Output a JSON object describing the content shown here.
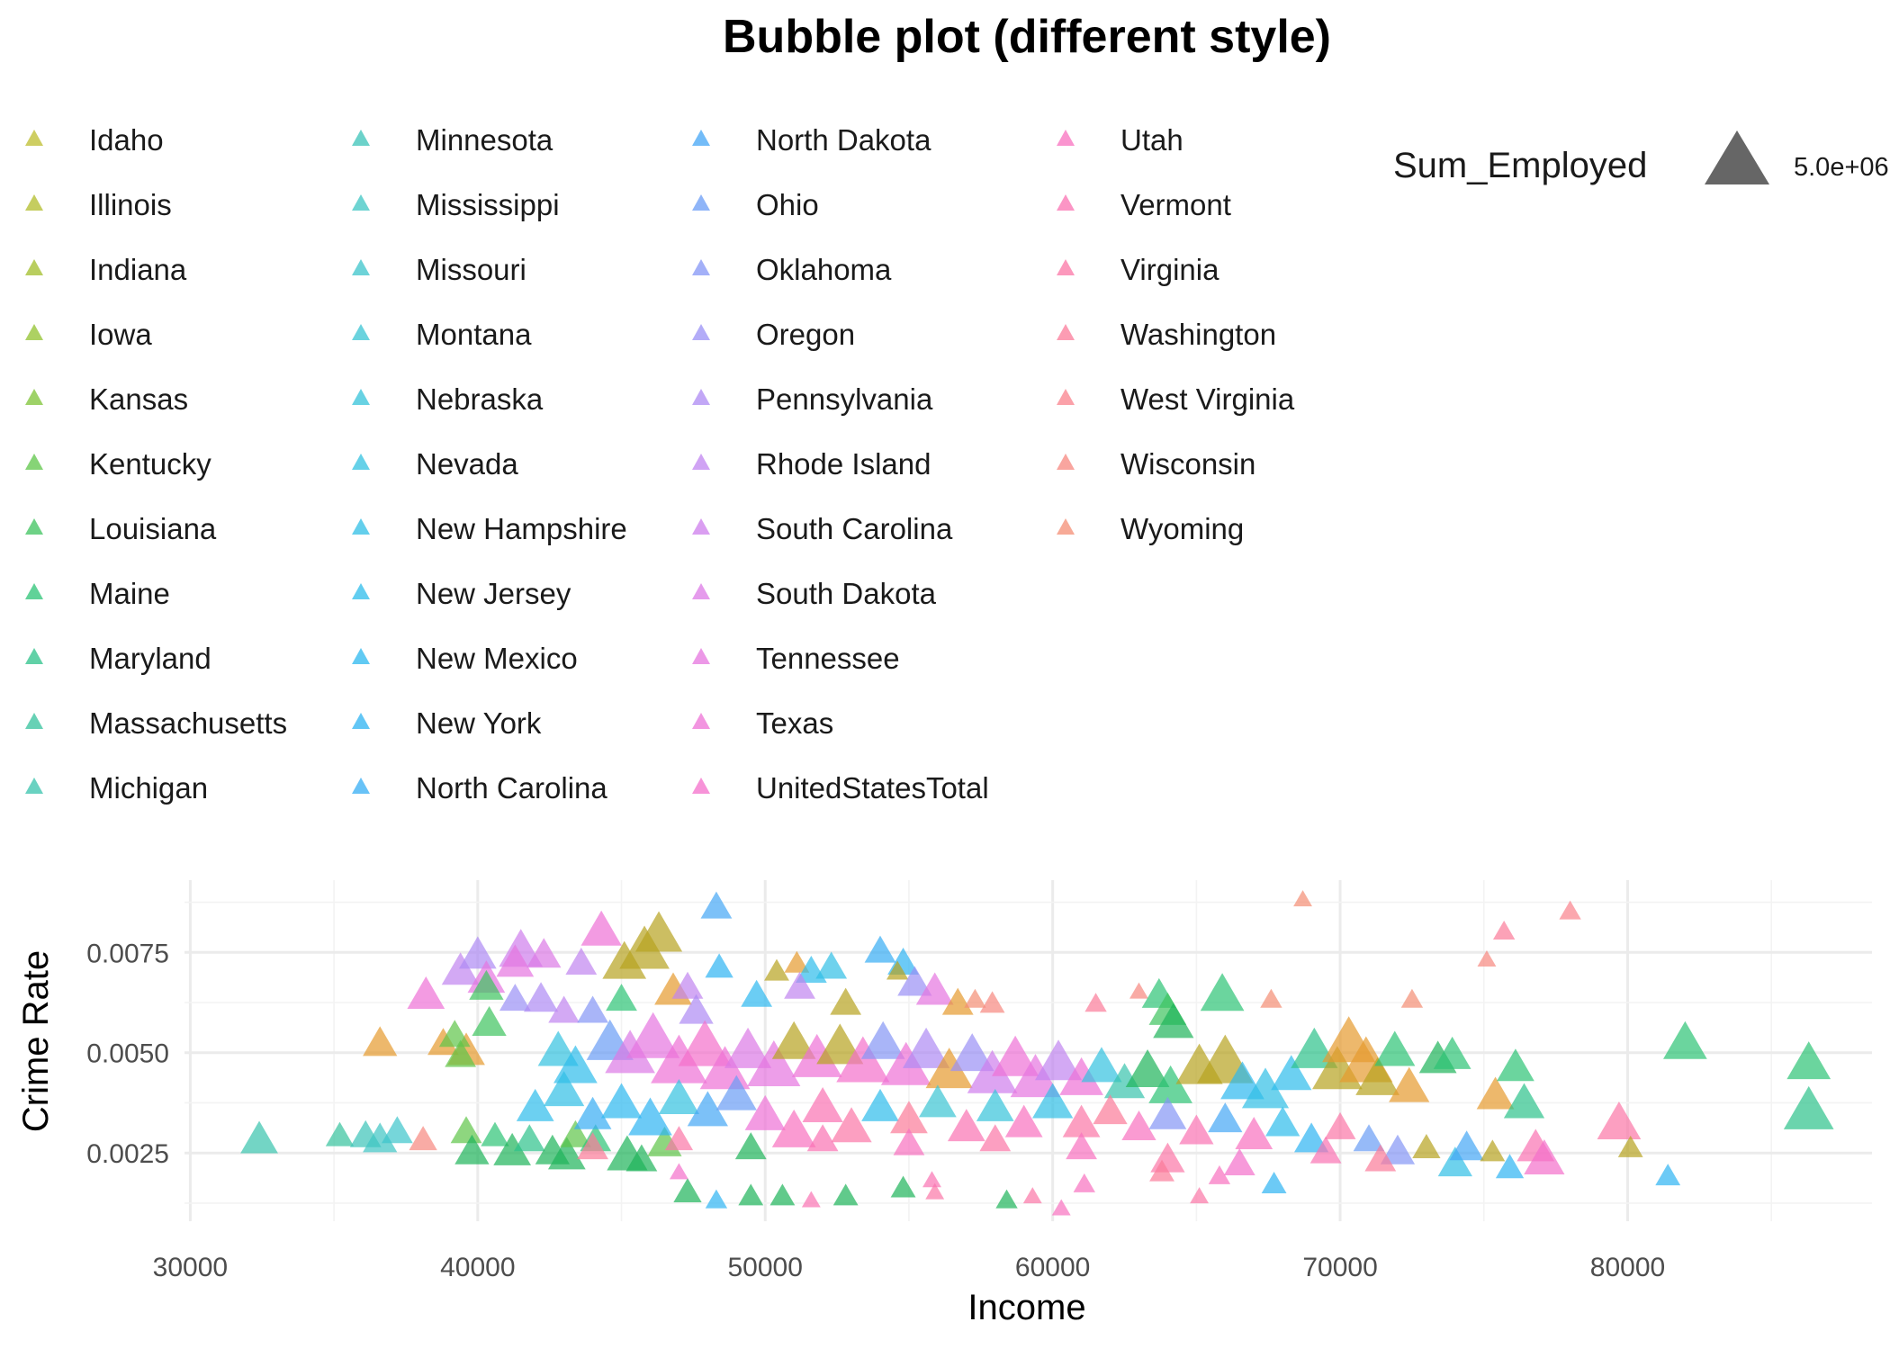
{
  "chart_data": {
    "type": "scatter",
    "title": "Bubble plot (different style)",
    "xlabel": "Income",
    "ylabel": "Crime Rate",
    "xlim": [
      29800,
      88500
    ],
    "ylim": [
      0.0008,
      0.0093
    ],
    "x_ticks": [
      30000,
      40000,
      50000,
      60000,
      70000,
      80000
    ],
    "x_tick_labels": [
      "30000",
      "40000",
      "50000",
      "60000",
      "70000",
      "80000"
    ],
    "y_ticks": [
      0.0025,
      0.005,
      0.0075
    ],
    "y_tick_labels": [
      "0.0025",
      "0.0050",
      "0.0075"
    ],
    "grid": true,
    "marker": "triangle",
    "legend_position": "top",
    "size_legend": {
      "title": "Sum_Employed",
      "label": "5.0e+06",
      "value": 5000000
    },
    "legend_items": [
      {
        "name": "Idaho",
        "color": "#BDBD2E"
      },
      {
        "name": "Illinois",
        "color": "#B1BC2A"
      },
      {
        "name": "Indiana",
        "color": "#A2BE2A"
      },
      {
        "name": "Iowa",
        "color": "#92C12E"
      },
      {
        "name": "Kansas",
        "color": "#7DC336"
      },
      {
        "name": "Kentucky",
        "color": "#5EC548"
      },
      {
        "name": "Louisiana",
        "color": "#3DC35E"
      },
      {
        "name": "Maine",
        "color": "#2CC375"
      },
      {
        "name": "Maryland",
        "color": "#2CC28A"
      },
      {
        "name": "Massachusetts",
        "color": "#34C29C"
      },
      {
        "name": "Michigan",
        "color": "#37C3AC"
      },
      {
        "name": "Minnesota",
        "color": "#3BC3B8"
      },
      {
        "name": "Mississippi",
        "color": "#3DC5C3"
      },
      {
        "name": "Missouri",
        "color": "#3CC4CB"
      },
      {
        "name": "Montana",
        "color": "#3AC4D3"
      },
      {
        "name": "Nebraska",
        "color": "#36C3DA"
      },
      {
        "name": "Nevada",
        "color": "#33C2E0"
      },
      {
        "name": "New Hampshire",
        "color": "#30BFE6"
      },
      {
        "name": "New Jersey",
        "color": "#2DBCEB"
      },
      {
        "name": "New Mexico",
        "color": "#2CB8EF"
      },
      {
        "name": "New York",
        "color": "#2EB3F2"
      },
      {
        "name": "North Carolina",
        "color": "#36ADF4"
      },
      {
        "name": "North Dakota",
        "color": "#44A6F5"
      },
      {
        "name": "Ohio",
        "color": "#6A9CF5"
      },
      {
        "name": "Oklahoma",
        "color": "#8496F5"
      },
      {
        "name": "Oregon",
        "color": "#9A90F5"
      },
      {
        "name": "Pennsylvania",
        "color": "#AE8AF3"
      },
      {
        "name": "Rhode Island",
        "color": "#C084F0"
      },
      {
        "name": "South Carolina",
        "color": "#CE7EEC"
      },
      {
        "name": "South Dakota",
        "color": "#DC79E6"
      },
      {
        "name": "Tennessee",
        "color": "#E575DF"
      },
      {
        "name": "Texas",
        "color": "#EE71D6"
      },
      {
        "name": "UnitedStatesTotal",
        "color": "#F46FCB"
      },
      {
        "name": "Utah",
        "color": "#F870BF"
      },
      {
        "name": "Vermont",
        "color": "#FA72B2"
      },
      {
        "name": "Virginia",
        "color": "#FB76A6"
      },
      {
        "name": "Washington",
        "color": "#FB7B99"
      },
      {
        "name": "West Virginia",
        "color": "#FA818C"
      },
      {
        "name": "Wisconsin",
        "color": "#F7877F"
      },
      {
        "name": "Wyoming",
        "color": "#F48D74"
      }
    ],
    "extra_colors": {
      "orange": "#E69A2E",
      "olive": "#B7A21F",
      "green": "#1EB45A",
      "pink": "#FF66C8",
      "blue": "#1EA8E8"
    },
    "points": [
      [
        32400,
        0.0028,
        1.2,
        "Michigan"
      ],
      [
        35200,
        0.0029,
        0.9,
        "Massachusetts"
      ],
      [
        36100,
        0.0029,
        1.0,
        "Minnesota"
      ],
      [
        36600,
        0.0028,
        1.1,
        "Mississippi"
      ],
      [
        37200,
        0.003,
        1.0,
        "Missouri"
      ],
      [
        38100,
        0.0028,
        0.9,
        "Wisconsin"
      ],
      [
        36600,
        0.0052,
        1.1,
        "orange"
      ],
      [
        38800,
        0.0052,
        1.0,
        "orange"
      ],
      [
        39600,
        0.005,
        1.2,
        "orange"
      ],
      [
        39200,
        0.0054,
        1.0,
        "Kentucky"
      ],
      [
        39400,
        0.0049,
        1.0,
        "Kentucky"
      ],
      [
        40400,
        0.0057,
        1.1,
        "Louisiana"
      ],
      [
        39600,
        0.003,
        1.0,
        "Kentucky"
      ],
      [
        39800,
        0.0025,
        1.1,
        "green"
      ],
      [
        40600,
        0.0029,
        0.9,
        "Maine"
      ],
      [
        41200,
        0.0025,
        1.2,
        "green"
      ],
      [
        41800,
        0.0028,
        1.0,
        "Maryland"
      ],
      [
        42600,
        0.0025,
        1.1,
        "green"
      ],
      [
        43100,
        0.0024,
        1.2,
        "green"
      ],
      [
        43400,
        0.0029,
        1.0,
        "Kentucky"
      ],
      [
        44100,
        0.0028,
        1.0,
        "Maine"
      ],
      [
        45200,
        0.0024,
        1.3,
        "green"
      ],
      [
        45700,
        0.0023,
        1.0,
        "green"
      ],
      [
        46500,
        0.0027,
        1.1,
        "Kentucky"
      ],
      [
        39400,
        0.007,
        1.2,
        "Rhode Island"
      ],
      [
        40000,
        0.0074,
        1.2,
        "Pennsylvania"
      ],
      [
        41500,
        0.0075,
        1.4,
        "South Carolina"
      ],
      [
        41300,
        0.0072,
        1.2,
        "Tennessee"
      ],
      [
        42300,
        0.0074,
        1.1,
        "South Dakota"
      ],
      [
        44300,
        0.008,
        1.3,
        "Texas"
      ],
      [
        43600,
        0.0072,
        1.0,
        "Rhode Island"
      ],
      [
        38200,
        0.0064,
        1.2,
        "Texas"
      ],
      [
        40300,
        0.0068,
        1.2,
        "Tennessee"
      ],
      [
        40300,
        0.0066,
        1.1,
        "Louisiana"
      ],
      [
        41300,
        0.0063,
        1.0,
        "Oregon"
      ],
      [
        42200,
        0.0063,
        1.1,
        "Pennsylvania"
      ],
      [
        43000,
        0.006,
        1.0,
        "Rhode Island"
      ],
      [
        44000,
        0.006,
        1.0,
        "Oklahoma"
      ],
      [
        45000,
        0.0063,
        1.0,
        "Maine"
      ],
      [
        45800,
        0.0075,
        1.6,
        "olive"
      ],
      [
        45100,
        0.0072,
        1.4,
        "olive"
      ],
      [
        46300,
        0.0079,
        1.5,
        "olive"
      ],
      [
        46800,
        0.0065,
        1.2,
        "orange"
      ],
      [
        47300,
        0.0066,
        1.0,
        "Rhode Island"
      ],
      [
        47600,
        0.006,
        1.1,
        "Pennsylvania"
      ],
      [
        48300,
        0.0086,
        1.0,
        "North Dakota"
      ],
      [
        48400,
        0.0071,
        0.9,
        "New York"
      ],
      [
        49700,
        0.0064,
        1.0,
        "New Mexico"
      ],
      [
        50400,
        0.007,
        0.8,
        "olive"
      ],
      [
        51100,
        0.0072,
        0.8,
        "orange"
      ],
      [
        51600,
        0.007,
        1.0,
        "New Jersey"
      ],
      [
        52300,
        0.0071,
        1.0,
        "New Hampshire"
      ],
      [
        51200,
        0.0066,
        1.0,
        "Rhode Island"
      ],
      [
        52800,
        0.0062,
        1.0,
        "olive"
      ],
      [
        54000,
        0.0075,
        1.0,
        "North Carolina"
      ],
      [
        54800,
        0.0072,
        1.0,
        "New York"
      ],
      [
        54600,
        0.007,
        0.7,
        "olive"
      ],
      [
        55200,
        0.0067,
        1.1,
        "Oregon"
      ],
      [
        55900,
        0.0065,
        1.2,
        "Tennessee"
      ],
      [
        56700,
        0.0062,
        1.0,
        "orange"
      ],
      [
        57300,
        0.0063,
        0.7,
        "Wyoming"
      ],
      [
        57900,
        0.0062,
        0.8,
        "Wisconsin"
      ],
      [
        61500,
        0.0062,
        0.7,
        "Washington"
      ],
      [
        63000,
        0.0065,
        0.6,
        "Wisconsin"
      ],
      [
        63700,
        0.0064,
        1.1,
        "Maine"
      ],
      [
        64000,
        0.006,
        1.2,
        "Louisiana"
      ],
      [
        64200,
        0.0057,
        1.3,
        "green"
      ],
      [
        65900,
        0.0064,
        1.4,
        "Maine"
      ],
      [
        67600,
        0.0063,
        0.7,
        "Wyoming"
      ],
      [
        68700,
        0.0088,
        0.6,
        "Wyoming"
      ],
      [
        75700,
        0.008,
        0.7,
        "Washington"
      ],
      [
        75100,
        0.0073,
        0.6,
        "Wisconsin"
      ],
      [
        78000,
        0.0085,
        0.7,
        "West Virginia"
      ],
      [
        72500,
        0.0063,
        0.7,
        "Wyoming"
      ],
      [
        42800,
        0.005,
        1.3,
        "Nevada"
      ],
      [
        43400,
        0.0046,
        1.4,
        "New Jersey"
      ],
      [
        44600,
        0.0052,
        1.5,
        "Ohio"
      ],
      [
        45300,
        0.0049,
        1.6,
        "South Dakota"
      ],
      [
        46100,
        0.0053,
        1.7,
        "Tennessee"
      ],
      [
        47000,
        0.0047,
        1.8,
        "Texas"
      ],
      [
        47900,
        0.0051,
        1.7,
        "UnitedStatesTotal"
      ],
      [
        48600,
        0.0045,
        1.6,
        "Texas"
      ],
      [
        49400,
        0.005,
        1.5,
        "South Dakota"
      ],
      [
        50300,
        0.0046,
        1.7,
        "Tennessee"
      ],
      [
        51000,
        0.0052,
        1.4,
        "olive"
      ],
      [
        51800,
        0.0048,
        1.6,
        "Texas"
      ],
      [
        52600,
        0.0051,
        1.5,
        "olive"
      ],
      [
        53400,
        0.0047,
        1.7,
        "UnitedStatesTotal"
      ],
      [
        54100,
        0.0052,
        1.4,
        "Oklahoma"
      ],
      [
        54900,
        0.0046,
        1.6,
        "Texas"
      ],
      [
        55600,
        0.005,
        1.5,
        "Pennsylvania"
      ],
      [
        56400,
        0.0045,
        1.5,
        "orange"
      ],
      [
        57200,
        0.0049,
        1.4,
        "Oregon"
      ],
      [
        57900,
        0.0044,
        1.6,
        "South Carolina"
      ],
      [
        58700,
        0.0048,
        1.5,
        "Texas"
      ],
      [
        59400,
        0.0043,
        1.6,
        "Tennessee"
      ],
      [
        60200,
        0.0047,
        1.5,
        "Rhode Island"
      ],
      [
        61000,
        0.0043,
        1.4,
        "Texas"
      ],
      [
        61700,
        0.0046,
        1.3,
        "Nevada"
      ],
      [
        62500,
        0.0042,
        1.3,
        "Michigan"
      ],
      [
        63300,
        0.0045,
        1.4,
        "green"
      ],
      [
        64100,
        0.0041,
        1.4,
        "Maine"
      ],
      [
        65100,
        0.0046,
        1.5,
        "olive"
      ],
      [
        66000,
        0.0047,
        1.8,
        "olive"
      ],
      [
        66600,
        0.0042,
        1.4,
        "New Mexico"
      ],
      [
        67400,
        0.004,
        1.5,
        "New Hampshire"
      ],
      [
        68300,
        0.0044,
        1.3,
        "New Jersey"
      ],
      [
        69100,
        0.005,
        1.5,
        "Maryland"
      ],
      [
        69900,
        0.0045,
        1.6,
        "olive"
      ],
      [
        70300,
        0.0052,
        1.7,
        "orange"
      ],
      [
        70900,
        0.0047,
        1.7,
        "orange"
      ],
      [
        71300,
        0.0043,
        1.4,
        "olive"
      ],
      [
        71900,
        0.005,
        1.3,
        "Maine"
      ],
      [
        72400,
        0.0041,
        1.3,
        "orange"
      ],
      [
        73400,
        0.0048,
        1.2,
        "green"
      ],
      [
        73900,
        0.0049,
        1.2,
        "Maine"
      ],
      [
        75400,
        0.0039,
        1.2,
        "orange"
      ],
      [
        76100,
        0.0046,
        1.2,
        "Maine"
      ],
      [
        76400,
        0.0037,
        1.3,
        "Maryland"
      ],
      [
        82000,
        0.0052,
        1.4,
        "Maine"
      ],
      [
        86300,
        0.0047,
        1.4,
        "Maine"
      ],
      [
        86300,
        0.0035,
        1.6,
        "Maryland"
      ],
      [
        79700,
        0.0032,
        1.4,
        "Virginia"
      ],
      [
        80100,
        0.0026,
        0.8,
        "olive"
      ],
      [
        81400,
        0.0019,
        0.8,
        "New York"
      ],
      [
        42000,
        0.0036,
        1.2,
        "New Jersey"
      ],
      [
        43000,
        0.004,
        1.3,
        "New Hampshire"
      ],
      [
        44000,
        0.0034,
        1.2,
        "North Carolina"
      ],
      [
        45000,
        0.0037,
        1.3,
        "New Mexico"
      ],
      [
        46000,
        0.0033,
        1.4,
        "New York"
      ],
      [
        47000,
        0.0038,
        1.3,
        "Nevada"
      ],
      [
        48000,
        0.0035,
        1.3,
        "North Dakota"
      ],
      [
        49000,
        0.0039,
        1.3,
        "Ohio"
      ],
      [
        50000,
        0.0034,
        1.3,
        "Texas"
      ],
      [
        51000,
        0.003,
        1.4,
        "Utah"
      ],
      [
        52000,
        0.0036,
        1.3,
        "Vermont"
      ],
      [
        53000,
        0.0031,
        1.3,
        "Virginia"
      ],
      [
        54000,
        0.0036,
        1.2,
        "New Jersey"
      ],
      [
        55000,
        0.0033,
        1.2,
        "Washington"
      ],
      [
        56000,
        0.0037,
        1.2,
        "Montana"
      ],
      [
        57000,
        0.0031,
        1.2,
        "Vermont"
      ],
      [
        58000,
        0.0036,
        1.2,
        "Nebraska"
      ],
      [
        59000,
        0.0032,
        1.2,
        "Utah"
      ],
      [
        60000,
        0.0037,
        1.3,
        "New Hampshire"
      ],
      [
        61000,
        0.0032,
        1.2,
        "Virginia"
      ],
      [
        62000,
        0.0035,
        1.1,
        "Washington"
      ],
      [
        63000,
        0.0031,
        1.1,
        "Utah"
      ],
      [
        64000,
        0.0034,
        1.2,
        "Oklahoma"
      ],
      [
        65000,
        0.003,
        1.1,
        "Vermont"
      ],
      [
        66000,
        0.0033,
        1.1,
        "North Dakota"
      ],
      [
        67000,
        0.0029,
        1.2,
        "Utah"
      ],
      [
        68000,
        0.0032,
        1.1,
        "New Jersey"
      ],
      [
        69000,
        0.0028,
        1.1,
        "New York"
      ],
      [
        70000,
        0.0031,
        1.0,
        "Virginia"
      ],
      [
        71000,
        0.0028,
        1.0,
        "Ohio"
      ],
      [
        72000,
        0.0025,
        1.1,
        "Oklahoma"
      ],
      [
        73000,
        0.0026,
        0.9,
        "olive"
      ],
      [
        74000,
        0.0022,
        1.1,
        "New Hampshire"
      ],
      [
        74400,
        0.0026,
        1.1,
        "North Dakota"
      ],
      [
        75900,
        0.0021,
        0.9,
        "New York"
      ],
      [
        76800,
        0.0026,
        1.2,
        "Vermont"
      ],
      [
        77100,
        0.0023,
        1.3,
        "UnitedStatesTotal"
      ],
      [
        75300,
        0.0025,
        0.8,
        "olive"
      ],
      [
        44000,
        0.0026,
        1.0,
        "Washington"
      ],
      [
        47000,
        0.0028,
        0.9,
        "Virginia"
      ],
      [
        49500,
        0.0026,
        1.0,
        "green"
      ],
      [
        52000,
        0.0028,
        1.0,
        "Vermont"
      ],
      [
        55000,
        0.0027,
        1.0,
        "Utah"
      ],
      [
        58000,
        0.0028,
        1.0,
        "Virginia"
      ],
      [
        61000,
        0.0026,
        1.0,
        "Utah"
      ],
      [
        64000,
        0.0023,
        1.1,
        "Virginia"
      ],
      [
        66500,
        0.0022,
        1.0,
        "UnitedStatesTotal"
      ],
      [
        69500,
        0.0025,
        1.0,
        "Vermont"
      ],
      [
        71400,
        0.0023,
        1.0,
        "Washington"
      ],
      [
        63800,
        0.002,
        0.8,
        "Washington"
      ],
      [
        65800,
        0.0019,
        0.7,
        "Utah"
      ],
      [
        67700,
        0.0017,
        0.8,
        "New York"
      ],
      [
        61100,
        0.0017,
        0.7,
        "Utah"
      ],
      [
        47300,
        0.0015,
        0.9,
        "green"
      ],
      [
        48300,
        0.0013,
        0.7,
        "New York"
      ],
      [
        49500,
        0.0014,
        0.8,
        "green"
      ],
      [
        50600,
        0.0014,
        0.8,
        "green"
      ],
      [
        51600,
        0.0013,
        0.6,
        "Vermont"
      ],
      [
        52800,
        0.0014,
        0.8,
        "green"
      ],
      [
        54800,
        0.0016,
        0.8,
        "green"
      ],
      [
        55900,
        0.0015,
        0.6,
        "Virginia"
      ],
      [
        58400,
        0.0013,
        0.7,
        "green"
      ],
      [
        59300,
        0.0014,
        0.6,
        "Virginia"
      ],
      [
        60300,
        0.0011,
        0.6,
        "Utah"
      ],
      [
        65100,
        0.0014,
        0.6,
        "Virginia"
      ],
      [
        47000,
        0.002,
        0.6,
        "UnitedStatesTotal"
      ],
      [
        55800,
        0.0018,
        0.6,
        "Vermont"
      ]
    ]
  }
}
